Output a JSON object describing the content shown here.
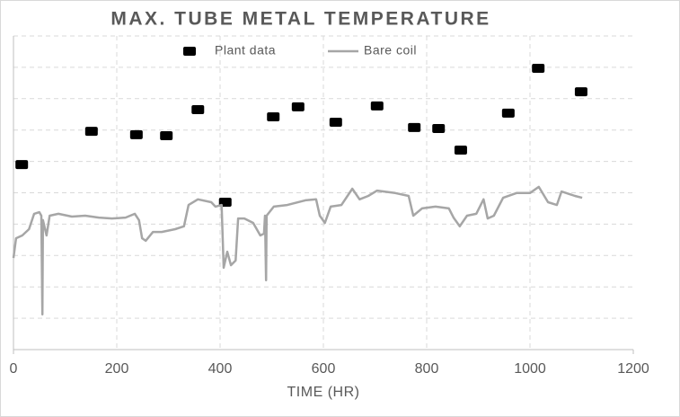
{
  "chart_data": {
    "type": "scatter",
    "title": "MAX. TUBE METAL TEMPERATURE",
    "x_label": "TIME (HR)",
    "xlim": [
      0,
      1200
    ],
    "xticks": [
      0,
      200,
      400,
      600,
      800,
      1000,
      1200
    ],
    "ylim": [
      0,
      10
    ],
    "yticks": [
      0,
      1,
      2,
      3,
      4,
      5,
      6,
      7,
      8,
      9,
      10
    ],
    "grid": true,
    "legend": "top",
    "series": [
      {
        "name": "Plant data",
        "type": "scatter",
        "color": "#000000",
        "x": [
          16,
          151,
          238,
          296,
          357,
          410,
          503,
          551,
          624,
          704,
          776,
          823,
          866,
          958,
          1016,
          1099
        ],
        "values": [
          5.9,
          6.96,
          6.85,
          6.82,
          7.65,
          4.7,
          7.42,
          7.74,
          7.25,
          7.77,
          7.08,
          7.05,
          6.36,
          7.54,
          8.97,
          8.22
        ]
      },
      {
        "name": "Bare coil",
        "type": "line",
        "color": "#a6a6a6",
        "x": [
          0,
          5,
          17,
          30,
          40,
          50,
          54,
          56,
          57,
          64,
          70,
          87,
          113,
          139,
          165,
          191,
          217,
          235,
          243,
          249,
          256,
          270,
          287,
          313,
          330,
          339,
          357,
          383,
          391,
          403,
          407,
          414,
          421,
          430,
          435,
          447,
          464,
          478,
          485,
          487,
          489,
          490,
          504,
          530,
          565,
          586,
          593,
          603,
          614,
          635,
          656,
          670,
          687,
          704,
          739,
          765,
          774,
          791,
          817,
          843,
          852,
          864,
          878,
          896,
          910,
          918,
          930,
          948,
          974,
          1000,
          1017,
          1035,
          1052,
          1061,
          1087,
          1101
        ],
        "values": [
          2.92,
          3.55,
          3.64,
          3.84,
          4.33,
          4.38,
          4.27,
          1.12,
          4.13,
          3.64,
          4.27,
          4.33,
          4.24,
          4.27,
          4.21,
          4.18,
          4.21,
          4.33,
          4.13,
          3.55,
          3.47,
          3.75,
          3.75,
          3.84,
          3.93,
          4.61,
          4.79,
          4.7,
          4.56,
          4.61,
          2.61,
          3.12,
          2.69,
          2.84,
          4.18,
          4.18,
          4.04,
          3.64,
          3.7,
          4.27,
          2.21,
          4.27,
          4.56,
          4.61,
          4.76,
          4.79,
          4.27,
          4.04,
          4.56,
          4.61,
          5.13,
          4.79,
          4.9,
          5.07,
          4.99,
          4.9,
          4.27,
          4.5,
          4.56,
          4.5,
          4.21,
          3.93,
          4.27,
          4.33,
          4.79,
          4.18,
          4.27,
          4.84,
          4.99,
          4.99,
          5.19,
          4.7,
          4.61,
          5.04,
          4.9,
          4.84
        ]
      }
    ]
  }
}
